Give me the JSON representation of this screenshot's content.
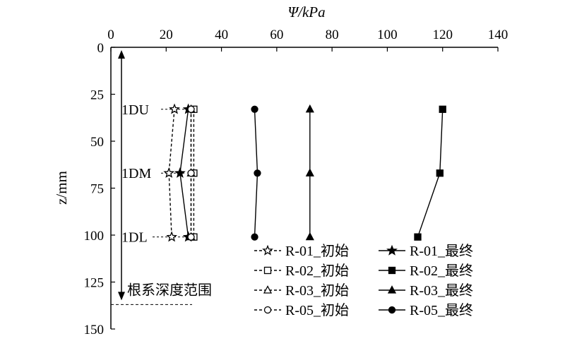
{
  "chart_data": {
    "type": "line",
    "title": "",
    "xlabel": "Ψ/kPa",
    "ylabel": "z/mm",
    "x_axis_position": "top",
    "y_axis_inverted": true,
    "xlim": [
      0,
      140
    ],
    "ylim": [
      0,
      150
    ],
    "xticks": [
      "0",
      "20",
      "40",
      "60",
      "80",
      "100",
      "120",
      "140"
    ],
    "yticks": [
      "0",
      "25",
      "50",
      "75",
      "100",
      "125",
      "150"
    ],
    "grid": false,
    "legend_position": "bottom-right",
    "sensor_labels": [
      {
        "label": "1DU",
        "z": 33
      },
      {
        "label": "1DM",
        "z": 67
      },
      {
        "label": "1DL",
        "z": 101
      }
    ],
    "root_zone": {
      "label": "根系深度范围",
      "z_from": 0,
      "z_to": 137
    },
    "series": [
      {
        "name": "R-01_初始",
        "marker": "star-open",
        "dashed": true,
        "x": [
          23,
          21,
          22
        ],
        "z": [
          33,
          67,
          101
        ]
      },
      {
        "name": "R-01_最终",
        "marker": "star-filled",
        "dashed": false,
        "x": [
          28,
          25,
          28
        ],
        "z": [
          33,
          67,
          101
        ]
      },
      {
        "name": "R-02_初始",
        "marker": "square-open",
        "dashed": true,
        "x": [
          30,
          30,
          30
        ],
        "z": [
          33,
          67,
          101
        ]
      },
      {
        "name": "R-02_最终",
        "marker": "square-filled",
        "dashed": false,
        "x": [
          120,
          119,
          111
        ],
        "z": [
          33,
          67,
          101
        ]
      },
      {
        "name": "R-03_初始",
        "marker": "triangle-open",
        "dashed": true,
        "x": [
          29,
          29,
          29
        ],
        "z": [
          33,
          67,
          101
        ]
      },
      {
        "name": "R-03_最终",
        "marker": "triangle-filled",
        "dashed": false,
        "x": [
          72,
          72,
          72
        ],
        "z": [
          33,
          67,
          101
        ]
      },
      {
        "name": "R-05_初始",
        "marker": "circle-open",
        "dashed": true,
        "x": [
          29,
          29,
          29
        ],
        "z": [
          33,
          67,
          101
        ]
      },
      {
        "name": "R-05_最终",
        "marker": "circle-filled",
        "dashed": false,
        "x": [
          52,
          53,
          52
        ],
        "z": [
          33,
          67,
          101
        ]
      }
    ]
  }
}
